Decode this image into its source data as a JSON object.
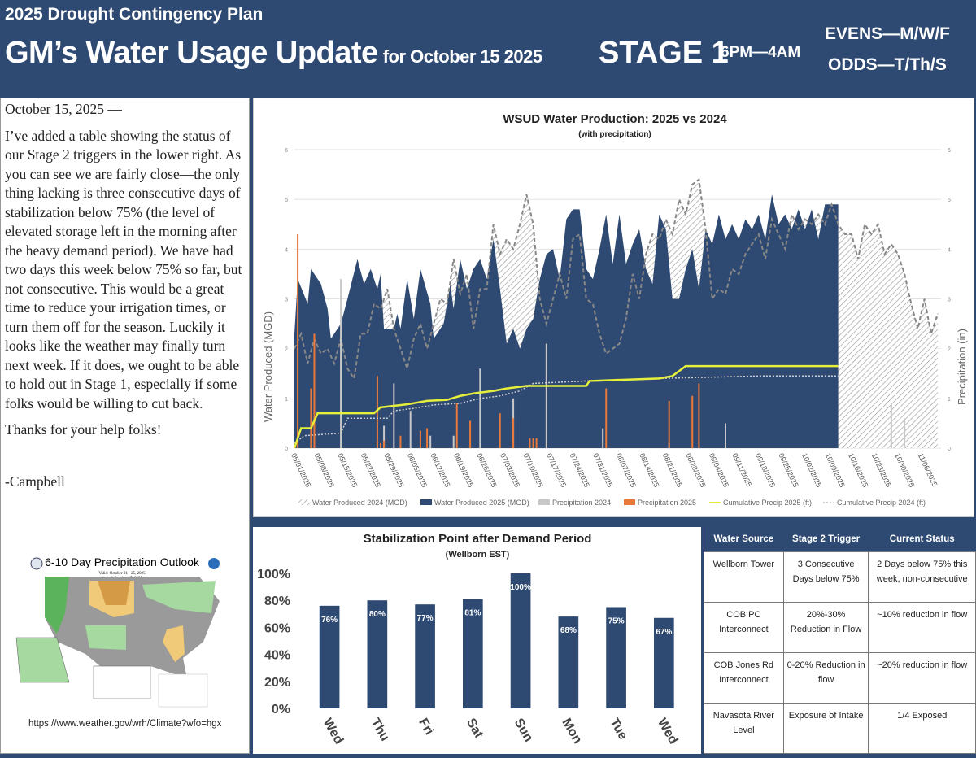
{
  "header": {
    "subtitle": "2025 Drought Contingency Plan",
    "title": "GM’s Water Usage Update",
    "date": "for October 15 2025",
    "stage": "STAGE 1",
    "hours": "6PM—4AM",
    "evens": "EVENS—M/W/F",
    "odds": "ODDS—T/Th/S"
  },
  "letter": {
    "dateline": "October 15, 2025 —",
    "body": "I’ve added a table showing the status of our Stage 2 triggers in the lower right. As you can see we are fairly close—the only thing lacking is three consecutive days of stabilization below 75% (the level of elevated storage left in the morning after the heavy demand period).  We have had two days this week below 75% so far, but not consecutive.  This would be a great time to reduce your irrigation times, or turn them off for the season. Luckily it looks like the weather may finally turn next week.  If it does, we ought to be able to hold out in Stage 1, especially if some folks would be willing to cut back.",
    "thanks": "Thanks for your help folks!",
    "signature": "-Campbell"
  },
  "outlook": {
    "title": "6-10 Day Precipitation Outlook",
    "valid": "Valid: October 21 - 25, 2025",
    "issued": "Issued: October 15, 2025",
    "url": "https://www.weather.gov/wrh/Climate?wfo=hgx"
  },
  "chart_data": [
    {
      "type": "area",
      "title": "WSUD Water Production: 2025 vs 2024",
      "subtitle": "(with precipitation)",
      "ylabel": "Water Produced (MGD)",
      "y2label": "Precipitation (in)",
      "ylim": [
        0,
        6
      ],
      "y2lim": [
        0,
        6
      ],
      "yticks": [
        0,
        1,
        2,
        3,
        4,
        5,
        6
      ],
      "xlabels": [
        "05/01/2025",
        "05/08/2025",
        "05/15/2025",
        "05/22/2025",
        "05/29/2025",
        "06/05/2025",
        "06/12/2025",
        "06/19/2025",
        "06/26/2025",
        "07/03/2025",
        "07/10/2025",
        "07/17/2025",
        "07/24/2025",
        "07/31/2025",
        "08/07/2025",
        "08/14/2025",
        "08/21/2025",
        "08/28/2025",
        "09/04/2025",
        "09/11/2025",
        "09/18/2025",
        "09/25/2025",
        "10/02/2025",
        "10/09/2025",
        "10/16/2025",
        "10/23/2025",
        "10/30/2025",
        "11/06/2025"
      ],
      "x_units": "days since 05/01",
      "xmax": 195,
      "legend": [
        "Water Produced 2024 (MGD)",
        "Water Produced 2025 (MGD)",
        "Precipitation 2024",
        "Precipitation 2025",
        "Cumulative Precip 2025 (ft)",
        "Cumulative Precip 2024 (ft)"
      ],
      "colors": {
        "w2025": "#2f4a72",
        "w2024": "#888888",
        "p2024": "#c8c8c8",
        "p2025": "#e8793a",
        "c2025": "#e6f03c",
        "c2024": "#d0d0d0"
      },
      "water_2025": [
        [
          0,
          2.3
        ],
        [
          1,
          3.4
        ],
        [
          4,
          2.9
        ],
        [
          5,
          3.6
        ],
        [
          8,
          3.3
        ],
        [
          10,
          2.8
        ],
        [
          11,
          2.2
        ],
        [
          14,
          2.5
        ],
        [
          16,
          3.0
        ],
        [
          19,
          3.8
        ],
        [
          21,
          3.3
        ],
        [
          23,
          3.6
        ],
        [
          25,
          3.2
        ],
        [
          26,
          3.5
        ],
        [
          27,
          2.4
        ],
        [
          30,
          2.4
        ],
        [
          31,
          2.7
        ],
        [
          32,
          2.4
        ],
        [
          34,
          3.4
        ],
        [
          36,
          2.6
        ],
        [
          38,
          3.6
        ],
        [
          41,
          2.9
        ],
        [
          42,
          2.2
        ],
        [
          45,
          2.5
        ],
        [
          47,
          3.3
        ],
        [
          48,
          2.8
        ],
        [
          50,
          3.8
        ],
        [
          52,
          3.2
        ],
        [
          54,
          3.6
        ],
        [
          56,
          3.8
        ],
        [
          58,
          3.4
        ],
        [
          60,
          4.2
        ],
        [
          62,
          3.2
        ],
        [
          64,
          2.1
        ],
        [
          66,
          2.4
        ],
        [
          68,
          2.0
        ],
        [
          70,
          2.4
        ],
        [
          72,
          2.6
        ],
        [
          74,
          3.4
        ],
        [
          76,
          3.9
        ],
        [
          78,
          4.0
        ],
        [
          80,
          3.4
        ],
        [
          82,
          4.6
        ],
        [
          84,
          4.8
        ],
        [
          86,
          4.8
        ],
        [
          88,
          3.6
        ],
        [
          90,
          3.4
        ],
        [
          92,
          4.0
        ],
        [
          94,
          4.7
        ],
        [
          96,
          3.7
        ],
        [
          98,
          4.7
        ],
        [
          100,
          3.7
        ],
        [
          102,
          4.1
        ],
        [
          104,
          4.4
        ],
        [
          106,
          3.6
        ],
        [
          108,
          3.3
        ],
        [
          110,
          4.7
        ],
        [
          112,
          4.4
        ],
        [
          114,
          3.0
        ],
        [
          116,
          3.0
        ],
        [
          118,
          3.6
        ],
        [
          120,
          4.0
        ],
        [
          122,
          3.2
        ],
        [
          124,
          4.4
        ],
        [
          126,
          4.1
        ],
        [
          128,
          4.7
        ],
        [
          130,
          4.2
        ],
        [
          132,
          4.5
        ],
        [
          134,
          4.2
        ],
        [
          136,
          4.6
        ],
        [
          138,
          4.4
        ],
        [
          140,
          4.7
        ],
        [
          142,
          4.2
        ],
        [
          144,
          5.1
        ],
        [
          146,
          4.5
        ],
        [
          148,
          4.7
        ],
        [
          150,
          4.4
        ],
        [
          152,
          4.8
        ],
        [
          154,
          4.4
        ],
        [
          156,
          4.8
        ],
        [
          158,
          4.2
        ],
        [
          160,
          4.9
        ],
        [
          164,
          4.9
        ]
      ],
      "water_2024": [
        [
          0,
          2.0
        ],
        [
          2,
          2.3
        ],
        [
          4,
          1.7
        ],
        [
          6,
          2.2
        ],
        [
          8,
          1.9
        ],
        [
          10,
          2.0
        ],
        [
          12,
          1.7
        ],
        [
          14,
          2.2
        ],
        [
          16,
          1.6
        ],
        [
          18,
          1.4
        ],
        [
          20,
          2.3
        ],
        [
          22,
          2.3
        ],
        [
          24,
          2.9
        ],
        [
          26,
          2.8
        ],
        [
          28,
          3.2
        ],
        [
          30,
          2.4
        ],
        [
          32,
          2.0
        ],
        [
          34,
          1.6
        ],
        [
          36,
          2.2
        ],
        [
          38,
          2.5
        ],
        [
          40,
          2.0
        ],
        [
          42,
          2.5
        ],
        [
          44,
          3.0
        ],
        [
          46,
          2.9
        ],
        [
          48,
          3.8
        ],
        [
          50,
          3.1
        ],
        [
          52,
          3.5
        ],
        [
          54,
          2.4
        ],
        [
          56,
          3.2
        ],
        [
          58,
          3.2
        ],
        [
          60,
          4.5
        ],
        [
          62,
          3.9
        ],
        [
          64,
          4.2
        ],
        [
          66,
          4.0
        ],
        [
          68,
          4.5
        ],
        [
          70,
          5.1
        ],
        [
          72,
          4.5
        ],
        [
          74,
          3.0
        ],
        [
          76,
          2.5
        ],
        [
          78,
          3.0
        ],
        [
          80,
          3.5
        ],
        [
          82,
          3.0
        ],
        [
          84,
          4.2
        ],
        [
          86,
          4.3
        ],
        [
          88,
          3.0
        ],
        [
          90,
          2.9
        ],
        [
          92,
          2.3
        ],
        [
          94,
          1.9
        ],
        [
          96,
          2.0
        ],
        [
          98,
          2.1
        ],
        [
          100,
          2.6
        ],
        [
          102,
          3.5
        ],
        [
          104,
          3.0
        ],
        [
          106,
          3.9
        ],
        [
          108,
          4.3
        ],
        [
          110,
          4.2
        ],
        [
          112,
          4.6
        ],
        [
          114,
          4.3
        ],
        [
          116,
          5.0
        ],
        [
          118,
          4.7
        ],
        [
          120,
          5.3
        ],
        [
          122,
          5.4
        ],
        [
          124,
          4.4
        ],
        [
          126,
          3.0
        ],
        [
          128,
          3.2
        ],
        [
          130,
          3.1
        ],
        [
          132,
          3.6
        ],
        [
          134,
          3.5
        ],
        [
          136,
          3.9
        ],
        [
          138,
          4.1
        ],
        [
          140,
          4.3
        ],
        [
          142,
          3.8
        ],
        [
          144,
          4.6
        ],
        [
          146,
          4.3
        ],
        [
          148,
          4.0
        ],
        [
          150,
          4.7
        ],
        [
          152,
          4.4
        ],
        [
          154,
          4.6
        ],
        [
          156,
          4.5
        ],
        [
          158,
          4.7
        ],
        [
          160,
          4.5
        ],
        [
          162,
          4.9
        ],
        [
          164,
          4.5
        ],
        [
          166,
          4.3
        ],
        [
          168,
          4.3
        ],
        [
          170,
          3.8
        ],
        [
          172,
          4.5
        ],
        [
          174,
          4.3
        ],
        [
          176,
          4.5
        ],
        [
          178,
          3.9
        ],
        [
          180,
          4.1
        ],
        [
          182,
          3.9
        ],
        [
          184,
          3.5
        ],
        [
          186,
          2.9
        ],
        [
          188,
          2.4
        ],
        [
          190,
          3.0
        ],
        [
          192,
          2.3
        ],
        [
          194,
          2.7
        ]
      ],
      "precip_2025": [
        [
          1,
          4.3
        ],
        [
          5,
          1.2
        ],
        [
          6,
          2.3
        ],
        [
          25,
          1.45
        ],
        [
          26,
          0.1
        ],
        [
          27,
          0.15
        ],
        [
          32,
          0.25
        ],
        [
          38,
          0.35
        ],
        [
          40,
          0.4
        ],
        [
          49,
          0.9
        ],
        [
          53,
          0.55
        ],
        [
          62,
          0.7
        ],
        [
          66,
          0.6
        ],
        [
          71,
          0.2
        ],
        [
          72,
          0.2
        ],
        [
          73,
          0.2
        ],
        [
          94,
          1.2
        ],
        [
          113,
          0.95
        ],
        [
          120,
          1.05
        ],
        [
          122,
          1.3
        ]
      ],
      "precip_2024": [
        [
          14,
          3.4
        ],
        [
          27,
          0.45
        ],
        [
          30,
          1.3
        ],
        [
          35,
          0.75
        ],
        [
          41,
          0.25
        ],
        [
          48,
          0.25
        ],
        [
          56,
          1.6
        ],
        [
          66,
          1.0
        ],
        [
          76,
          2.1
        ],
        [
          93,
          0.4
        ],
        [
          113,
          0.1
        ],
        [
          130,
          0.5
        ],
        [
          180,
          0.9
        ],
        [
          184,
          0.6
        ]
      ],
      "cum_2025": [
        [
          0,
          0
        ],
        [
          2,
          0.4
        ],
        [
          5,
          0.4
        ],
        [
          7,
          0.7
        ],
        [
          24,
          0.7
        ],
        [
          26,
          0.82
        ],
        [
          30,
          0.85
        ],
        [
          34,
          0.88
        ],
        [
          40,
          0.95
        ],
        [
          46,
          0.97
        ],
        [
          50,
          1.05
        ],
        [
          54,
          1.1
        ],
        [
          60,
          1.15
        ],
        [
          64,
          1.2
        ],
        [
          70,
          1.25
        ],
        [
          88,
          1.25
        ],
        [
          89,
          1.35
        ],
        [
          110,
          1.4
        ],
        [
          114,
          1.45
        ],
        [
          116,
          1.55
        ],
        [
          118,
          1.65
        ],
        [
          164,
          1.65
        ]
      ],
      "cum_2024": [
        [
          0,
          0.1
        ],
        [
          3,
          0.25
        ],
        [
          14,
          0.3
        ],
        [
          16,
          0.6
        ],
        [
          28,
          0.6
        ],
        [
          30,
          0.75
        ],
        [
          36,
          0.8
        ],
        [
          42,
          0.87
        ],
        [
          50,
          0.9
        ],
        [
          56,
          1.0
        ],
        [
          62,
          1.05
        ],
        [
          68,
          1.15
        ],
        [
          72,
          1.3
        ],
        [
          88,
          1.35
        ],
        [
          110,
          1.4
        ],
        [
          140,
          1.45
        ],
        [
          164,
          1.45
        ]
      ]
    },
    {
      "type": "bar",
      "title": "Stabilization Point after Demand Period",
      "subtitle": "(Wellborn EST)",
      "categories": [
        "Wed",
        "Thu",
        "Fri",
        "Sat",
        "Sun",
        "Mon",
        "Tue",
        "Wed"
      ],
      "values": [
        76,
        80,
        77,
        81,
        100,
        68,
        75,
        67
      ],
      "labels": [
        "76%",
        "80%",
        "77%",
        "81%",
        "100%",
        "68%",
        "75%",
        "67%"
      ],
      "ylim": [
        0,
        100
      ],
      "yticks": [
        "0%",
        "20%",
        "40%",
        "60%",
        "80%",
        "100%"
      ],
      "color": "#2f4a72"
    }
  ],
  "table": {
    "headers": [
      "Water Source",
      "Stage 2 Trigger",
      "Current Status"
    ],
    "rows": [
      [
        "Wellborn Tower",
        "3 Consecutive Days below 75%",
        "2 Days below 75% this week, non-consecutive"
      ],
      [
        "COB PC Interconnect",
        "20%-30% Reduction in Flow",
        "~10% reduction in flow"
      ],
      [
        "COB Jones Rd Interconnect",
        "0-20% Reduction in flow",
        "~20% reduction in flow"
      ],
      [
        "Navasota River Level",
        "Exposure of Intake",
        "1/4 Exposed"
      ]
    ]
  }
}
